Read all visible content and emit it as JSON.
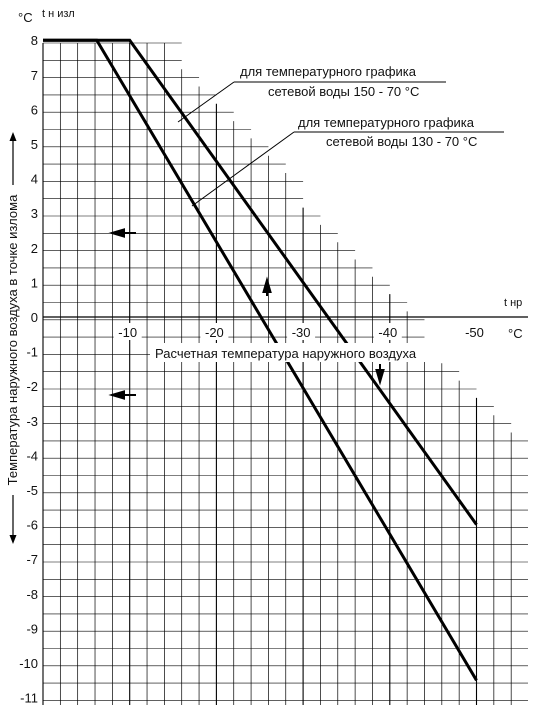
{
  "chart_data": {
    "type": "line",
    "y_unit_label": "°C",
    "y_symbol": "t н изл",
    "x_symbol": "t нр",
    "x_unit_label": "°C",
    "ylabel": "Температура наружного воздуха в точке излома",
    "xlabel": "Расчетная температура наружного воздуха",
    "x_ticks": [
      "-10",
      "-20",
      "-30",
      "-40",
      "-50"
    ],
    "y_ticks": [
      "8",
      "7",
      "6",
      "5",
      "4",
      "3",
      "2",
      "1",
      "0",
      "-1",
      "-2",
      "-3",
      "-4",
      "-5",
      "-6",
      "-7",
      "-8",
      "-9",
      "-10",
      "-11"
    ],
    "xlim": [
      0,
      -55
    ],
    "ylim": [
      -11.5,
      8.3
    ],
    "grid": true,
    "series": [
      {
        "name_lines": [
          "для температурного графика",
          "сетевой воды 150 - 70 °С"
        ],
        "x": [
          0,
          -10,
          -50
        ],
        "y": [
          8,
          8,
          -6
        ]
      },
      {
        "name_lines": [
          "для температурного графика",
          "сетевой воды 130 - 70 °С"
        ],
        "x": [
          0,
          -6.2,
          -50
        ],
        "y": [
          8,
          8,
          -10.5
        ]
      }
    ]
  }
}
